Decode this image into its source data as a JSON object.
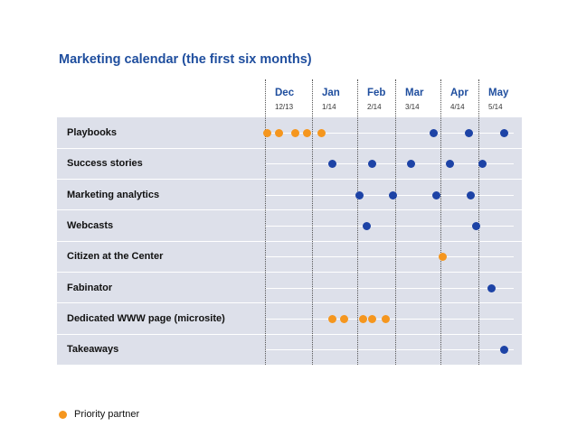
{
  "title": "Marketing calendar (the first six months)",
  "months": [
    {
      "name": "Dec",
      "date": "12/13"
    },
    {
      "name": "Jan",
      "date": "1/14"
    },
    {
      "name": "Feb",
      "date": "2/14"
    },
    {
      "name": "Mar",
      "date": "3/14"
    },
    {
      "name": "Apr",
      "date": "4/14"
    },
    {
      "name": "May",
      "date": "5/14"
    }
  ],
  "rows": [
    {
      "label": "Playbooks",
      "events": [
        {
          "month": 0.05,
          "type": "priority"
        },
        {
          "month": 0.3,
          "type": "priority"
        },
        {
          "month": 0.65,
          "type": "priority"
        },
        {
          "month": 0.9,
          "type": "priority"
        },
        {
          "month": 1.2,
          "type": "priority"
        },
        {
          "month": 3.85,
          "type": "standard"
        },
        {
          "month": 4.75,
          "type": "standard"
        },
        {
          "month": 5.6,
          "type": "standard"
        }
      ]
    },
    {
      "label": "Success stories",
      "events": [
        {
          "month": 1.45,
          "type": "standard"
        },
        {
          "month": 2.4,
          "type": "standard"
        },
        {
          "month": 3.35,
          "type": "standard"
        },
        {
          "month": 4.25,
          "type": "standard"
        },
        {
          "month": 5.1,
          "type": "standard"
        }
      ]
    },
    {
      "label": "Marketing analytics",
      "events": [
        {
          "month": 2.05,
          "type": "standard"
        },
        {
          "month": 2.95,
          "type": "standard"
        },
        {
          "month": 3.9,
          "type": "standard"
        },
        {
          "month": 4.8,
          "type": "standard"
        }
      ]
    },
    {
      "label": "Webcasts",
      "events": [
        {
          "month": 2.25,
          "type": "standard"
        },
        {
          "month": 4.95,
          "type": "standard"
        }
      ]
    },
    {
      "label": "Citizen at the Center",
      "events": [
        {
          "month": 4.05,
          "type": "priority"
        }
      ]
    },
    {
      "label": "Fabinator",
      "events": [
        {
          "month": 5.3,
          "type": "standard"
        }
      ]
    },
    {
      "label": "Dedicated WWW page (microsite)",
      "events": [
        {
          "month": 1.45,
          "type": "priority"
        },
        {
          "month": 1.7,
          "type": "priority"
        },
        {
          "month": 2.15,
          "type": "priority"
        },
        {
          "month": 2.4,
          "type": "priority"
        },
        {
          "month": 2.75,
          "type": "priority"
        }
      ]
    },
    {
      "label": "Takeaways",
      "events": [
        {
          "month": 5.6,
          "type": "standard"
        }
      ]
    }
  ],
  "legend": {
    "label": "Priority partner",
    "color": "#f5961e"
  },
  "colors": {
    "priority": "#f5961e",
    "standard": "#1d43a6",
    "title": "#1f4e9e",
    "row_bg": "#dde0ea"
  }
}
